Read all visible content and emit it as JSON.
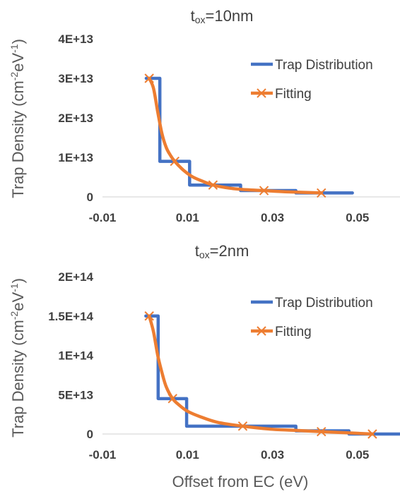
{
  "chart_data": [
    {
      "type": "line",
      "title": "tox=10nm",
      "title_main": "t",
      "title_sub": "ox",
      "title_rest": "=10nm",
      "ylabel_main": "Trap Density (cm",
      "ylabel_sup1": "-2",
      "ylabel_mid": "eV",
      "ylabel_sup2": "-1",
      "ylabel_end": ")",
      "xlim": [
        -0.01,
        0.06
      ],
      "ylim": [
        0,
        40000000000000.0
      ],
      "xticks": [
        -0.01,
        0.01,
        0.03,
        0.05
      ],
      "xtick_labels": [
        "-0.01",
        "0.01",
        "0.03",
        "0.05"
      ],
      "yticks": [
        0,
        10000000000000.0,
        20000000000000.0,
        30000000000000.0,
        40000000000000.0
      ],
      "ytick_labels": [
        "0",
        "1E+13",
        "2E+13",
        "3E+13",
        "4E+13"
      ],
      "legend_position": "top-right",
      "series": [
        {
          "name": "Trap Distribution",
          "color": "#4472C4",
          "style": "step",
          "x": [
            0.0003,
            0.0035,
            0.0035,
            0.0105,
            0.0105,
            0.0225,
            0.0225,
            0.0355,
            0.0355,
            0.0488
          ],
          "y": [
            30000000000000.0,
            30000000000000.0,
            9000000000000.0,
            9000000000000.0,
            3000000000000.0,
            3000000000000.0,
            1600000000000.0,
            1600000000000.0,
            1000000000000.0,
            1000000000000.0
          ]
        },
        {
          "name": "Fitting",
          "color": "#ED7D31",
          "style": "smooth",
          "markers_x": [
            0.001,
            0.007,
            0.016,
            0.028,
            0.0415
          ],
          "markers_y": [
            30000000000000.0,
            9000000000000.0,
            3000000000000.0,
            1600000000000.0,
            1000000000000.0
          ],
          "x": [
            0.001,
            0.002,
            0.003,
            0.004,
            0.005,
            0.006,
            0.007,
            0.009,
            0.011,
            0.013,
            0.016,
            0.02,
            0.024,
            0.028,
            0.033,
            0.0415
          ],
          "y": [
            30000000000000.0,
            27500000000000.0,
            21500000000000.0,
            16000000000000.0,
            12500000000000.0,
            10500000000000.0,
            9000000000000.0,
            6800000000000.0,
            5200000000000.0,
            4200000000000.0,
            3000000000000.0,
            2200000000000.0,
            1800000000000.0,
            1600000000000.0,
            1300000000000.0,
            1000000000000.0
          ]
        }
      ]
    },
    {
      "type": "line",
      "title": "tox=2nm",
      "title_main": "t",
      "title_sub": "ox",
      "title_rest": "=2nm",
      "ylabel_main": "Trap Density (cm",
      "ylabel_sup1": "-2",
      "ylabel_mid": "eV",
      "ylabel_sup2": "-1",
      "ylabel_end": ")",
      "xlabel": "Offset from EC (eV)",
      "xlim": [
        -0.01,
        0.06
      ],
      "ylim": [
        0,
        200000000000000.0
      ],
      "xticks": [
        -0.01,
        0.01,
        0.03,
        0.05
      ],
      "xtick_labels": [
        "-0.01",
        "0.01",
        "0.03",
        "0.05"
      ],
      "yticks": [
        0,
        50000000000000.0,
        100000000000000.0,
        150000000000000.0,
        200000000000000.0
      ],
      "ytick_labels": [
        "0",
        "5E+13",
        "1E+14",
        "1.5E+14",
        "2E+14"
      ],
      "legend_position": "top-right",
      "series": [
        {
          "name": "Trap Distribution",
          "color": "#4472C4",
          "style": "step",
          "x": [
            0.0002,
            0.0031,
            0.0031,
            0.0098,
            0.0098,
            0.0355,
            0.0355,
            0.048,
            0.048,
            0.06
          ],
          "y": [
            150000000000000.0,
            150000000000000.0,
            45000000000000.0,
            45000000000000.0,
            10000000000000.0,
            10000000000000.0,
            4000000000000.0,
            4000000000000.0,
            0.0,
            0.0
          ]
        },
        {
          "name": "Fitting",
          "color": "#ED7D31",
          "style": "smooth",
          "markers_x": [
            0.001,
            0.0065,
            0.023,
            0.0415,
            0.0535
          ],
          "markers_y": [
            150000000000000.0,
            45000000000000.0,
            10000000000000.0,
            3000000000000.0,
            0.0
          ],
          "x": [
            0.001,
            0.002,
            0.003,
            0.004,
            0.005,
            0.0065,
            0.008,
            0.01,
            0.013,
            0.017,
            0.023,
            0.03,
            0.036,
            0.0415,
            0.047,
            0.0535
          ],
          "y": [
            150000000000000.0,
            130000000000000.0,
            100000000000000.0,
            78000000000000.0,
            60000000000000.0,
            45000000000000.0,
            37000000000000.0,
            29000000000000.0,
            22000000000000.0,
            15000000000000.0,
            10000000000000.0,
            6000000000000.0,
            4500000000000.0,
            3000000000000.0,
            1700000000000.0,
            0.0
          ]
        }
      ]
    }
  ]
}
